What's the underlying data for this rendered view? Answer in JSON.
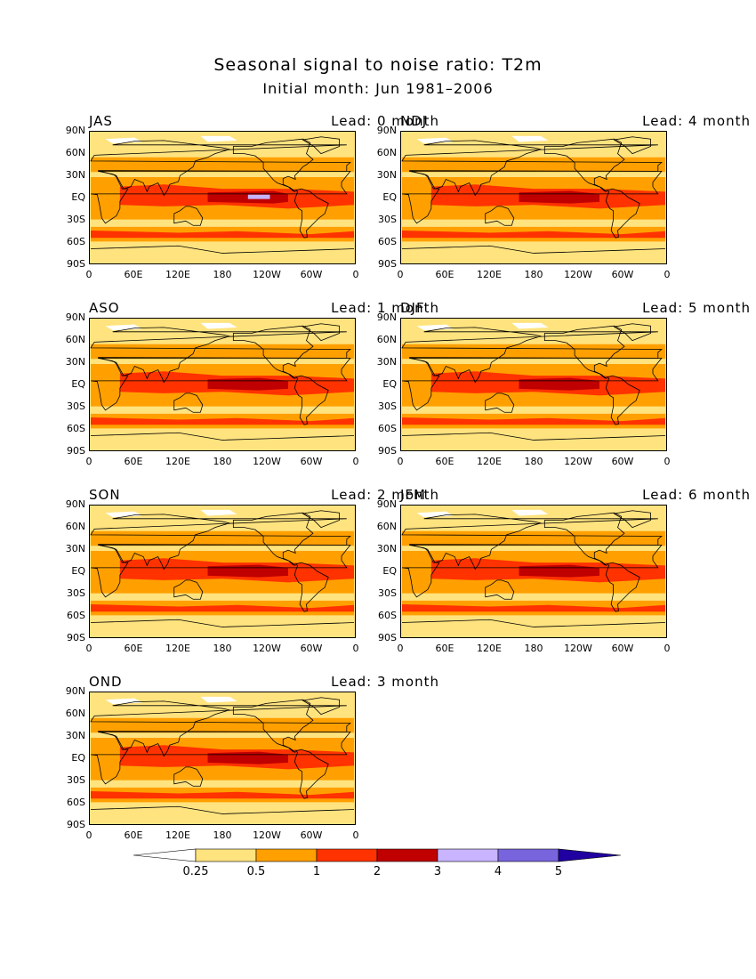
{
  "title": "Seasonal signal to noise ratio: T2m",
  "subtitle": "Initial month: Jun 1981–2006",
  "lat_ticks": [
    "90N",
    "60N",
    "30N",
    "EQ",
    "30S",
    "60S",
    "90S"
  ],
  "lon_ticks": [
    "0",
    "60E",
    "120E",
    "180",
    "120W",
    "60W",
    "0"
  ],
  "panels": [
    {
      "season": "JAS",
      "lead": "Lead: 0 month"
    },
    {
      "season": "NDJ",
      "lead": "Lead: 4 month"
    },
    {
      "season": "ASO",
      "lead": "Lead: 1 month"
    },
    {
      "season": "DJF",
      "lead": "Lead: 5 month"
    },
    {
      "season": "SON",
      "lead": "Lead: 2 month"
    },
    {
      "season": "JFM",
      "lead": "Lead: 6 month"
    },
    {
      "season": "OND",
      "lead": "Lead: 3 month"
    }
  ],
  "colorbar": {
    "labels": [
      "0.25",
      "0.5",
      "1",
      "2",
      "3",
      "4",
      "5"
    ],
    "colors": [
      "#ffffff",
      "#ffe37f",
      "#ffa000",
      "#ff3200",
      "#c00000",
      "#c8b4ff",
      "#7864dc",
      "#2000a0"
    ]
  },
  "colors": {
    "ocean_bg": "#ffe37f",
    "level_1": "#ffa000",
    "level_2": "#ff3200",
    "level_3": "#c00000",
    "level_4": "#c8b4ff",
    "coast": "#000000"
  }
}
